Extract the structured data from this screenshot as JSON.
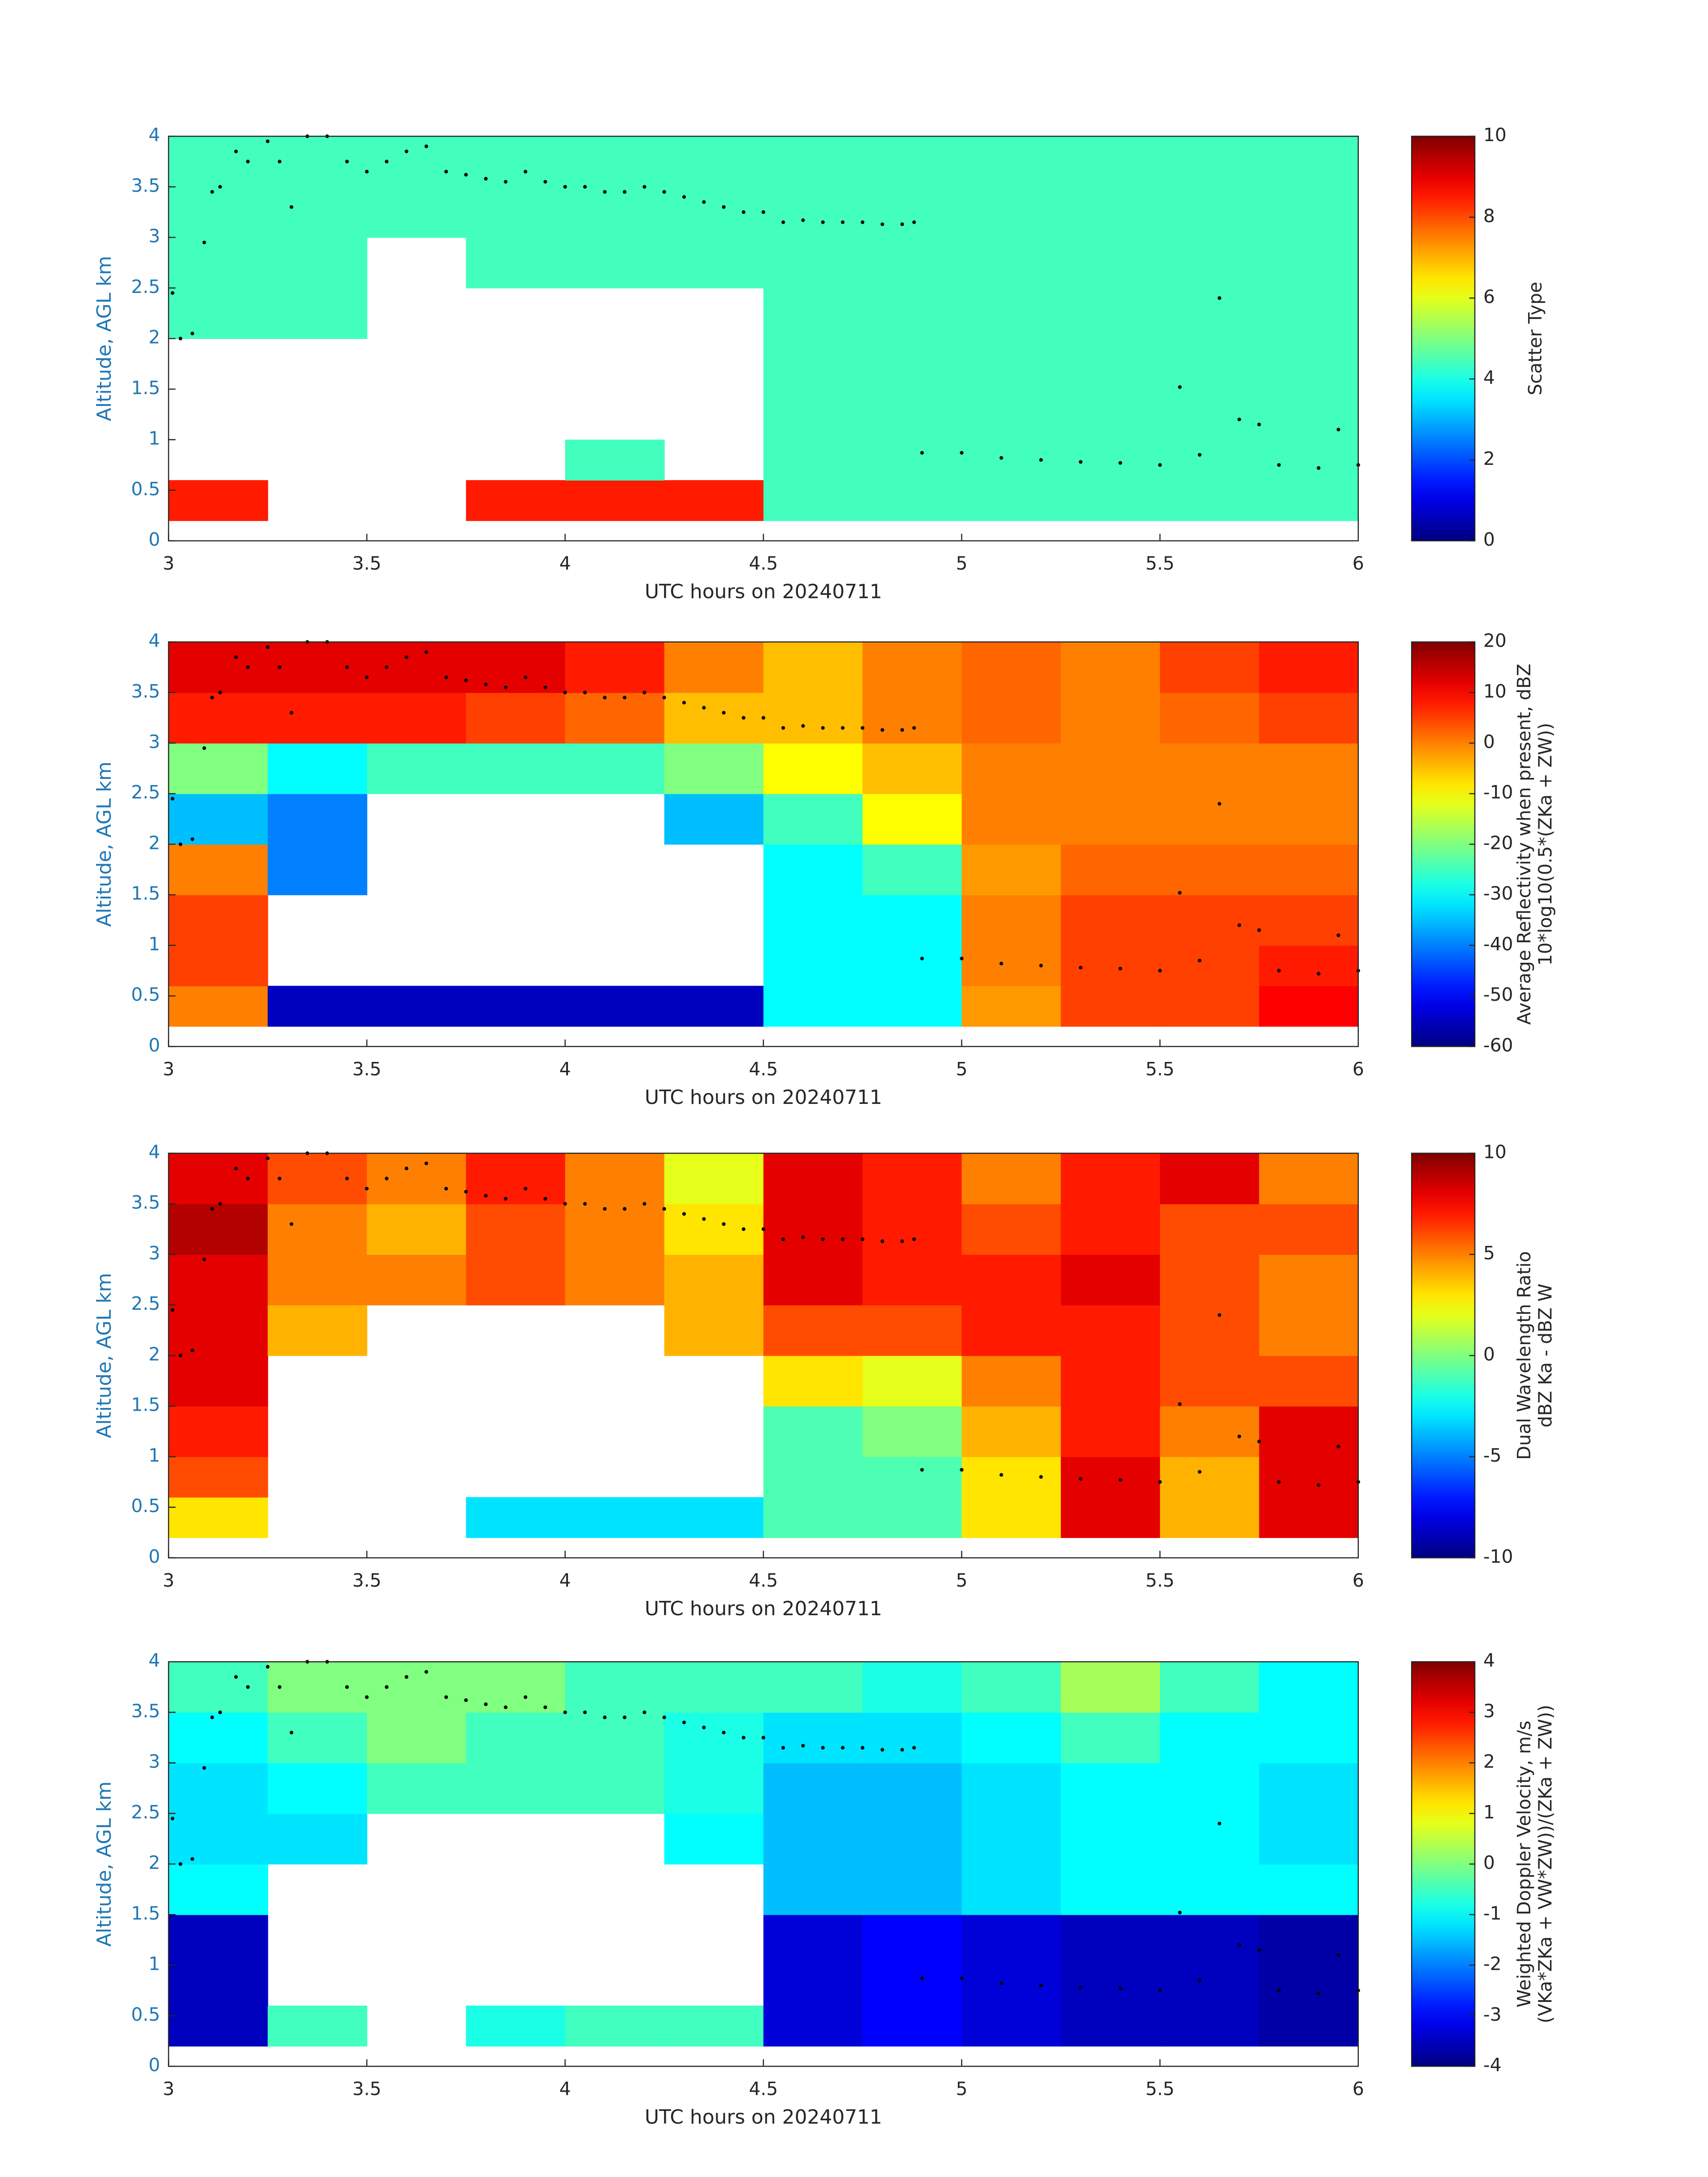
{
  "chart_data": [
    {
      "type": "heatmap",
      "colormap": "jet",
      "xlabel": "UTC hours on 20240711",
      "ylabel": "Altitude, AGL km",
      "xlim": [
        3,
        6
      ],
      "xticks": [
        3,
        3.5,
        4,
        4.5,
        5,
        5.5,
        6
      ],
      "ylim": [
        0,
        4
      ],
      "yticks": [
        0,
        0.5,
        1,
        1.5,
        2,
        2.5,
        3,
        3.5,
        4
      ],
      "x_edges": [
        3,
        3.25,
        3.5,
        3.75,
        4,
        4.25,
        4.5,
        4.75,
        5,
        5.25,
        5.5,
        5.75,
        6
      ],
      "y_edges": [
        0.2,
        0.6,
        1.0,
        1.5,
        2.0,
        2.5,
        3.0,
        3.5,
        4.0
      ],
      "z": [
        [
          8.5,
          null,
          null,
          8.5,
          8.5,
          8.5,
          4.4,
          4.4,
          4.4,
          4.4,
          4.4,
          4.4
        ],
        [
          null,
          null,
          null,
          null,
          4.4,
          null,
          4.4,
          4.4,
          4.4,
          4.4,
          4.4,
          4.4
        ],
        [
          null,
          null,
          null,
          null,
          null,
          null,
          4.4,
          4.4,
          4.4,
          4.4,
          4.4,
          4.4
        ],
        [
          null,
          null,
          null,
          null,
          null,
          null,
          4.4,
          4.4,
          4.4,
          4.4,
          4.4,
          4.4
        ],
        [
          4.4,
          4.4,
          null,
          null,
          null,
          null,
          4.4,
          4.4,
          4.4,
          4.4,
          4.4,
          4.4
        ],
        [
          4.4,
          4.4,
          null,
          4.4,
          4.4,
          4.4,
          4.4,
          4.4,
          4.4,
          4.4,
          4.4,
          4.4
        ],
        [
          4.4,
          4.4,
          4.4,
          4.4,
          4.4,
          4.4,
          4.4,
          4.4,
          4.4,
          4.4,
          4.4,
          4.4
        ],
        [
          4.4,
          4.4,
          4.4,
          4.4,
          4.4,
          4.4,
          4.4,
          4.4,
          4.4,
          4.4,
          4.4,
          4.4
        ]
      ],
      "zlim": [
        0,
        10
      ],
      "zticks": [
        0,
        2,
        4,
        6,
        8,
        10
      ],
      "colorbar_label": [
        "Scatter Type"
      ]
    },
    {
      "type": "heatmap",
      "colormap": "jet",
      "xlabel": "UTC hours on 20240711",
      "ylabel": "Altitude, AGL km",
      "xlim": [
        3,
        6
      ],
      "xticks": [
        3,
        3.5,
        4,
        4.5,
        5,
        5.5,
        6
      ],
      "ylim": [
        0,
        4
      ],
      "yticks": [
        0,
        0.5,
        1,
        1.5,
        2,
        2.5,
        3,
        3.5,
        4
      ],
      "x_edges": [
        3,
        3.25,
        3.5,
        3.75,
        4,
        4.25,
        4.5,
        4.75,
        5,
        5.25,
        5.5,
        5.75,
        6
      ],
      "y_edges": [
        0.2,
        0.6,
        1.0,
        1.5,
        2.0,
        2.5,
        3.0,
        3.5,
        4.0
      ],
      "z": [
        [
          0,
          -55,
          -55,
          -55,
          -55,
          -55,
          -30,
          -30,
          -2,
          5,
          5,
          10
        ],
        [
          5,
          null,
          null,
          null,
          null,
          null,
          -30,
          -30,
          0,
          5,
          5,
          8
        ],
        [
          5,
          null,
          null,
          null,
          null,
          null,
          -30,
          -30,
          0,
          5,
          5,
          5
        ],
        [
          0,
          -40,
          null,
          null,
          null,
          null,
          -30,
          -25,
          -2,
          2,
          2,
          2
        ],
        [
          -35,
          -40,
          null,
          null,
          null,
          -35,
          -25,
          -10,
          0,
          0,
          0,
          0
        ],
        [
          -20,
          -30,
          -25,
          -25,
          -25,
          -20,
          -10,
          -5,
          0,
          0,
          0,
          0
        ],
        [
          8,
          8,
          8,
          5,
          2,
          -5,
          -5,
          0,
          2,
          0,
          2,
          5
        ],
        [
          12,
          12,
          12,
          12,
          8,
          0,
          -5,
          0,
          2,
          0,
          5,
          8
        ]
      ],
      "zlim": [
        -60,
        20
      ],
      "zticks": [
        -60,
        -50,
        -40,
        -30,
        -20,
        -10,
        0,
        10,
        20
      ],
      "colorbar_label": [
        "Average Reflectivity when present, dBZ",
        "10*log10(0.5*(ZKa + ZW))"
      ]
    },
    {
      "type": "heatmap",
      "colormap": "jet",
      "xlabel": "UTC hours on 20240711",
      "ylabel": "Altitude, AGL km",
      "xlim": [
        3,
        6
      ],
      "xticks": [
        3,
        3.5,
        4,
        4.5,
        5,
        5.5,
        6
      ],
      "ylim": [
        0,
        4
      ],
      "yticks": [
        0,
        0.5,
        1,
        1.5,
        2,
        2.5,
        3,
        3.5,
        4
      ],
      "x_edges": [
        3,
        3.25,
        3.5,
        3.75,
        4,
        4.25,
        4.5,
        4.75,
        5,
        5.25,
        5.5,
        5.75,
        6
      ],
      "y_edges": [
        0.2,
        0.6,
        1.0,
        1.5,
        2.0,
        2.5,
        3.0,
        3.5,
        4.0
      ],
      "z": [
        [
          3,
          null,
          null,
          -3,
          -3,
          -3,
          -1,
          -1,
          3,
          8,
          4,
          8
        ],
        [
          6,
          null,
          null,
          null,
          null,
          null,
          -1,
          -1,
          3,
          8,
          4,
          8
        ],
        [
          7,
          null,
          null,
          null,
          null,
          null,
          -1,
          0,
          4,
          7,
          5,
          8
        ],
        [
          8,
          null,
          null,
          null,
          null,
          null,
          3,
          2,
          5,
          7,
          6,
          6
        ],
        [
          8,
          4,
          null,
          null,
          null,
          4,
          6,
          6,
          7,
          7,
          6,
          5
        ],
        [
          8,
          5,
          5,
          6,
          5,
          4,
          8,
          7,
          7,
          8,
          6,
          5
        ],
        [
          9,
          5,
          4,
          6,
          5,
          3,
          8,
          7,
          6,
          7,
          6,
          6
        ],
        [
          8,
          6,
          5,
          7,
          5,
          2,
          8,
          7,
          5,
          7,
          8,
          5
        ]
      ],
      "zlim": [
        -10,
        10
      ],
      "zticks": [
        -10,
        -5,
        0,
        5,
        10
      ],
      "colorbar_label": [
        "Dual Wavelength Ratio",
        "dBZ Ka - dBZ W"
      ]
    },
    {
      "type": "heatmap",
      "colormap": "jet",
      "xlabel": "UTC hours on 20240711",
      "ylabel": "Altitude, AGL km",
      "xlim": [
        3,
        6
      ],
      "xticks": [
        3,
        3.5,
        4,
        4.5,
        5,
        5.5,
        6
      ],
      "ylim": [
        0,
        4
      ],
      "yticks": [
        0,
        0.5,
        1,
        1.5,
        2,
        2.5,
        3,
        3.5,
        4
      ],
      "x_edges": [
        3,
        3.25,
        3.5,
        3.75,
        4,
        4.25,
        4.5,
        4.75,
        5,
        5.25,
        5.5,
        5.75,
        6
      ],
      "y_edges": [
        0.2,
        0.6,
        1.0,
        1.5,
        2.0,
        2.5,
        3.0,
        3.5,
        4.0
      ],
      "z": [
        [
          -3.5,
          -0.5,
          null,
          -0.8,
          -0.5,
          -0.5,
          -3.3,
          -3,
          -3.3,
          -3.5,
          -3.5,
          -3.7
        ],
        [
          -3.5,
          null,
          null,
          null,
          null,
          null,
          -3.3,
          -3,
          -3.3,
          -3.5,
          -3.5,
          -3.7
        ],
        [
          -3.5,
          null,
          null,
          null,
          null,
          null,
          -3.3,
          -3,
          -3.3,
          -3.5,
          -3.5,
          -3.7
        ],
        [
          -1,
          null,
          null,
          null,
          null,
          null,
          -1.5,
          -1.5,
          -1.2,
          -1,
          -1,
          -1
        ],
        [
          -1.2,
          -1.2,
          null,
          null,
          null,
          -1,
          -1.5,
          -1.5,
          -1.2,
          -1,
          -1,
          -1.2
        ],
        [
          -1.2,
          -1,
          -0.5,
          -0.5,
          -0.5,
          -0.8,
          -1.5,
          -1.5,
          -1.2,
          -1,
          -1,
          -1.2
        ],
        [
          -1,
          -0.5,
          0,
          -0.5,
          -0.5,
          -0.8,
          -1.2,
          -1.2,
          -1,
          -0.5,
          -1,
          -1
        ],
        [
          -0.5,
          0,
          0,
          0,
          -0.5,
          -0.5,
          -0.5,
          -0.8,
          -0.5,
          0.3,
          -0.5,
          -1
        ]
      ],
      "zlim": [
        -4,
        4
      ],
      "zticks": [
        -4,
        -3,
        -2,
        -1,
        0,
        1,
        2,
        3,
        4
      ],
      "colorbar_label": [
        "Weighted Doppler Velocity, m/s",
        "(VKa*ZKa + VW*ZW))/(ZKa + ZW))"
      ]
    }
  ],
  "points": {
    "x": [
      3.01,
      3.03,
      3.06,
      3.09,
      3.11,
      3.13,
      3.17,
      3.2,
      3.25,
      3.28,
      3.31,
      3.35,
      3.4,
      3.45,
      3.5,
      3.55,
      3.6,
      3.65,
      3.7,
      3.75,
      3.8,
      3.85,
      3.9,
      3.95,
      4.0,
      4.05,
      4.1,
      4.15,
      4.2,
      4.25,
      4.3,
      4.35,
      4.4,
      4.45,
      4.5,
      4.55,
      4.6,
      4.65,
      4.7,
      4.75,
      4.8,
      4.85,
      4.88,
      4.9,
      5.0,
      5.1,
      5.2,
      5.3,
      5.4,
      5.5,
      5.55,
      5.6,
      5.65,
      5.7,
      5.75,
      5.8,
      5.9,
      5.95,
      6.0
    ],
    "y": [
      2.45,
      2.0,
      2.05,
      2.95,
      3.45,
      3.5,
      3.85,
      3.75,
      3.95,
      3.75,
      3.3,
      4.0,
      4.0,
      3.75,
      3.65,
      3.75,
      3.85,
      3.9,
      3.65,
      3.62,
      3.58,
      3.55,
      3.65,
      3.55,
      3.5,
      3.5,
      3.45,
      3.45,
      3.5,
      3.45,
      3.4,
      3.35,
      3.3,
      3.25,
      3.25,
      3.15,
      3.17,
      3.15,
      3.15,
      3.15,
      3.13,
      3.13,
      3.15,
      0.87,
      0.87,
      0.82,
      0.8,
      0.78,
      0.77,
      0.75,
      1.52,
      0.85,
      2.4,
      1.2,
      1.15,
      0.75,
      0.72,
      1.1,
      0.75
    ]
  }
}
